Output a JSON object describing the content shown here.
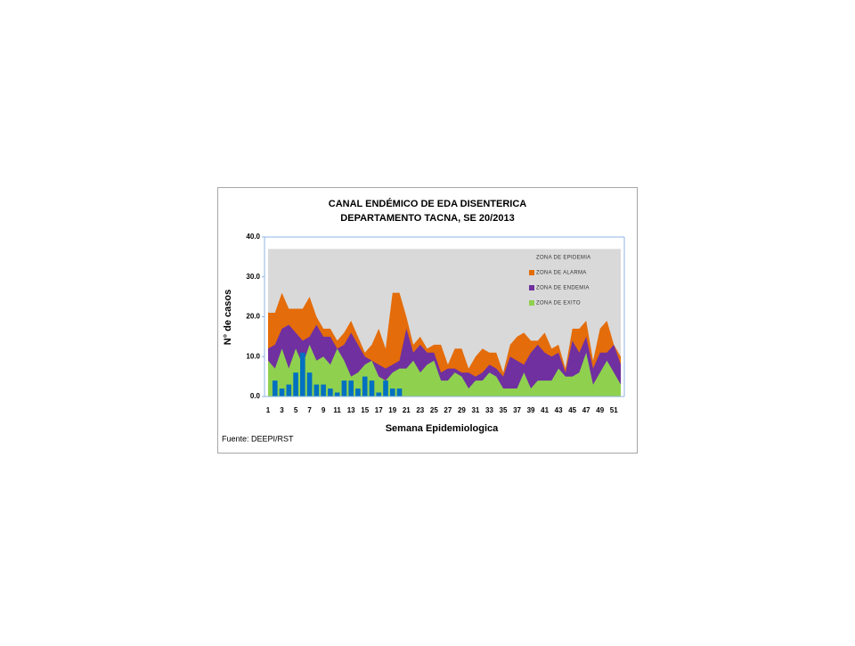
{
  "chart_data": {
    "type": "area",
    "title": [
      "CANAL ENDÉMICO DE EDA DISENTERICA",
      "DEPARTAMENTO TACNA,  SE 20/2013"
    ],
    "y_label": "N° de casos",
    "x_label": "Semana Epidemiologica",
    "source": "Fuente: DEEPI/RST",
    "categories": [
      1,
      null,
      3,
      null,
      5,
      null,
      7,
      null,
      9,
      null,
      11,
      null,
      13,
      null,
      15,
      null,
      17,
      null,
      19,
      null,
      21,
      null,
      23,
      null,
      25,
      null,
      27,
      null,
      29,
      null,
      31,
      null,
      33,
      null,
      35,
      null,
      37,
      null,
      39,
      null,
      41,
      null,
      43,
      null,
      45,
      null,
      47,
      null,
      49,
      null,
      51,
      null
    ],
    "ylim": [
      0,
      40
    ],
    "yticks": [
      {
        "value": 0,
        "label": "0.0"
      },
      {
        "value": 10,
        "label": "10.0"
      },
      {
        "value": 20,
        "label": "20.0"
      },
      {
        "value": 30,
        "label": "30.0"
      },
      {
        "value": 40,
        "label": "40.0"
      }
    ],
    "legend": "top-right",
    "series": [
      {
        "name": "ZONA DE EPIDEMIA",
        "color": "#d9d9d9",
        "values": [
          37,
          37,
          37,
          37,
          37,
          37,
          37,
          37,
          37,
          37,
          37,
          37,
          37,
          37,
          37,
          37,
          37,
          37,
          37,
          37,
          37,
          37,
          37,
          37,
          37,
          37,
          37,
          37,
          37,
          37,
          37,
          37,
          37,
          37,
          37,
          37,
          37,
          37,
          37,
          37,
          37,
          37,
          37,
          37,
          37,
          37,
          37,
          37,
          37,
          37,
          37,
          37
        ]
      },
      {
        "name": "ZONA DE ALARMA",
        "color": "#e46c0a",
        "values": [
          21,
          21,
          26,
          22,
          22,
          22,
          25,
          20,
          17,
          17,
          14,
          16,
          19,
          15,
          11,
          13,
          17,
          12,
          26,
          26,
          20,
          13,
          15,
          12,
          13,
          13,
          8,
          12,
          12,
          7,
          10,
          12,
          11,
          11,
          6,
          13,
          15,
          16,
          14,
          14,
          16,
          12,
          13,
          7,
          17,
          17,
          19,
          9,
          17,
          19,
          13,
          10
        ]
      },
      {
        "name": "ZONA DE ENDEMIA",
        "color": "#7030a0",
        "values": [
          12,
          13,
          17,
          18,
          16,
          14,
          15,
          18,
          15,
          15,
          12,
          13,
          16,
          13,
          10,
          9,
          8,
          7,
          8,
          9,
          17,
          11,
          13,
          11,
          11,
          6,
          7,
          7,
          6,
          6,
          5,
          6,
          8,
          7,
          5,
          10,
          9,
          8,
          11,
          13,
          11,
          10,
          11,
          6,
          14,
          11,
          15,
          7,
          11,
          11,
          13,
          8
        ]
      },
      {
        "name": "ZONA DE EXITO",
        "color": "#8fd14f",
        "values": [
          9,
          7,
          12,
          7,
          12,
          8,
          13,
          9,
          10,
          8,
          12,
          9,
          5,
          6,
          8,
          9,
          5,
          4,
          6,
          7,
          7,
          9,
          6,
          8,
          9,
          4,
          4,
          6,
          5,
          2,
          4,
          4,
          6,
          5,
          2,
          2,
          2,
          6,
          2,
          4,
          4,
          4,
          7,
          5,
          5,
          6,
          11,
          3,
          6,
          9,
          6,
          3
        ]
      }
    ],
    "bars": {
      "color": "#0070c0",
      "values": [
        null,
        4,
        2,
        3,
        6,
        11,
        6,
        3,
        3,
        2,
        1,
        4,
        4,
        2,
        5,
        4,
        1,
        4,
        2,
        2,
        null,
        null,
        null,
        null,
        null,
        null,
        null,
        null,
        null,
        null,
        null,
        null,
        null,
        null,
        null,
        null,
        null,
        null,
        null,
        null,
        null,
        null,
        null,
        null,
        null,
        null,
        null,
        null,
        null,
        null,
        null,
        null
      ]
    }
  }
}
